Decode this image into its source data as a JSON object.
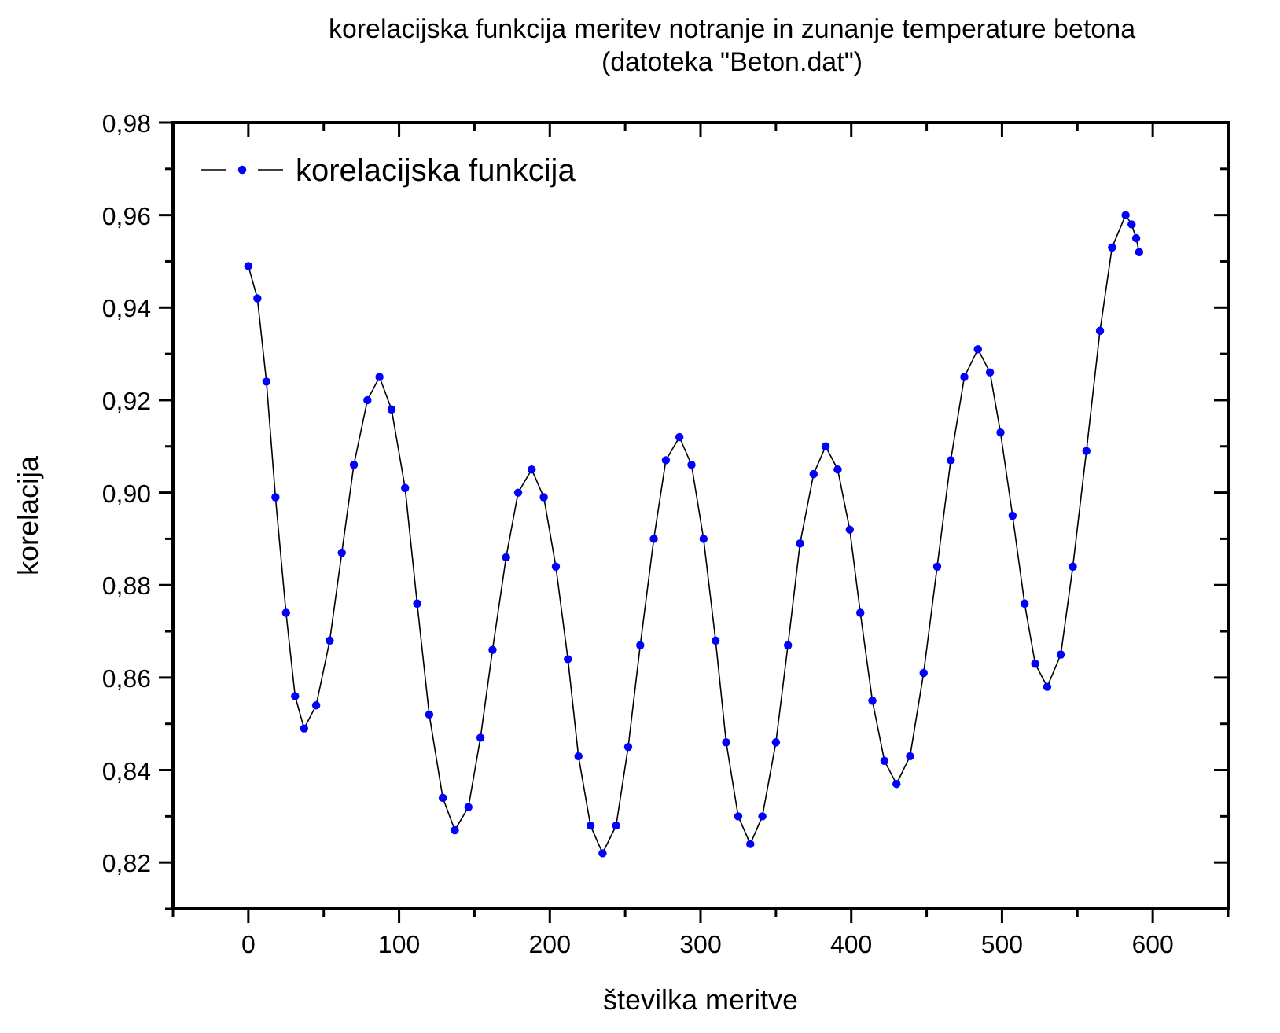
{
  "chart_data": {
    "type": "line",
    "title": "korelacijska funkcija meritev notranje in zunanje temperature betona",
    "subtitle": "(datoteka \"Beton.dat\")",
    "xlabel": "številka meritve",
    "ylabel": "korelacija",
    "xlim": [
      -50,
      650
    ],
    "ylim": [
      0.81,
      0.98
    ],
    "xticks": [
      {
        "value": -50,
        "label": null
      },
      0,
      {
        "value": 50,
        "label": null
      },
      100,
      {
        "value": 150,
        "label": null
      },
      200,
      {
        "value": 250,
        "label": null
      },
      300,
      {
        "value": 350,
        "label": null
      },
      400,
      {
        "value": 450,
        "label": null
      },
      500,
      {
        "value": 550,
        "label": null
      },
      600,
      {
        "value": 650,
        "label": null
      }
    ],
    "yticks": [
      {
        "value": 0.81,
        "label": null
      },
      {
        "value": 0.82,
        "label": "0,82"
      },
      {
        "value": 0.83,
        "label": null
      },
      {
        "value": 0.84,
        "label": "0,84"
      },
      {
        "value": 0.85,
        "label": null
      },
      {
        "value": 0.86,
        "label": "0,86"
      },
      {
        "value": 0.87,
        "label": null
      },
      {
        "value": 0.88,
        "label": "0,88"
      },
      {
        "value": 0.89,
        "label": null
      },
      {
        "value": 0.9,
        "label": "0,90"
      },
      {
        "value": 0.91,
        "label": null
      },
      {
        "value": 0.92,
        "label": "0,92"
      },
      {
        "value": 0.93,
        "label": null
      },
      {
        "value": 0.94,
        "label": "0,94"
      },
      {
        "value": 0.95,
        "label": null
      },
      {
        "value": 0.96,
        "label": "0,96"
      },
      {
        "value": 0.97,
        "label": null
      },
      {
        "value": 0.98,
        "label": "0,98"
      }
    ],
    "grid": false,
    "legend": "top left",
    "marker": "circle",
    "line_style": "solid",
    "series": [
      {
        "name": "korelacijska funkcija",
        "color": "#0000ff",
        "x": [
          0,
          6,
          12,
          18,
          25,
          31,
          37,
          45,
          54,
          62,
          70,
          79,
          87,
          95,
          104,
          112,
          120,
          129,
          137,
          146,
          154,
          162,
          171,
          179,
          188,
          196,
          204,
          212,
          219,
          227,
          235,
          244,
          252,
          260,
          269,
          277,
          286,
          294,
          302,
          310,
          317,
          325,
          333,
          341,
          350,
          358,
          366,
          375,
          383,
          391,
          399,
          406,
          414,
          422,
          430,
          439,
          448,
          457,
          466,
          475,
          484,
          492,
          499,
          507,
          515,
          522,
          530,
          539,
          547,
          556,
          565,
          573,
          582,
          586,
          589,
          591
        ],
        "values": [
          0.949,
          0.942,
          0.924,
          0.899,
          0.874,
          0.856,
          0.849,
          0.854,
          0.868,
          0.887,
          0.906,
          0.92,
          0.925,
          0.918,
          0.901,
          0.876,
          0.852,
          0.834,
          0.827,
          0.832,
          0.847,
          0.866,
          0.886,
          0.9,
          0.905,
          0.899,
          0.884,
          0.864,
          0.843,
          0.828,
          0.822,
          0.828,
          0.845,
          0.867,
          0.89,
          0.907,
          0.912,
          0.906,
          0.89,
          0.868,
          0.846,
          0.83,
          0.824,
          0.83,
          0.846,
          0.867,
          0.889,
          0.904,
          0.91,
          0.905,
          0.892,
          0.874,
          0.855,
          0.842,
          0.837,
          0.843,
          0.861,
          0.884,
          0.907,
          0.925,
          0.931,
          0.926,
          0.913,
          0.895,
          0.876,
          0.863,
          0.858,
          0.865,
          0.884,
          0.909,
          0.935,
          0.953,
          0.96,
          0.958,
          0.955,
          0.952
        ]
      }
    ]
  }
}
